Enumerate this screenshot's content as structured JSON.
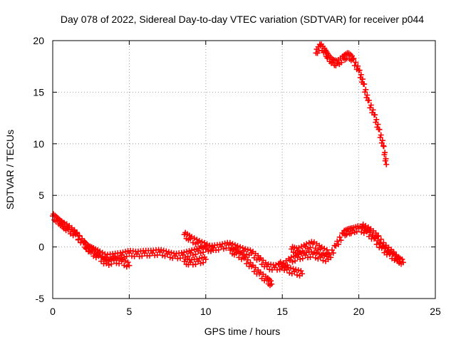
{
  "chart_data": {
    "type": "scatter",
    "title": "Day 078 of 2022, Sidereal Day-to-day VTEC variation (SDTVAR) for receiver p044",
    "xlabel": "GPS time / hours",
    "ylabel": "SDTVAR / TECUs",
    "xlim": [
      0,
      25
    ],
    "ylim": [
      -5,
      20
    ],
    "xticks": [
      0,
      5,
      10,
      15,
      20,
      25
    ],
    "yticks": [
      -5,
      0,
      5,
      10,
      15,
      20
    ],
    "grid": true,
    "marker": "plus",
    "series_color": "#ff0000",
    "series": [
      {
        "name": "main",
        "x": [
          0.0,
          0.3,
          0.6,
          1.0,
          1.5,
          2.0,
          2.3,
          2.6,
          3.0,
          3.5,
          4.0,
          4.5,
          5.0,
          5.5,
          6.0,
          6.5,
          7.0,
          7.5,
          8.0,
          8.5,
          9.0,
          9.5,
          10.0,
          10.5,
          11.0,
          11.5,
          12.0,
          12.5,
          13.0,
          13.5,
          14.0,
          14.5,
          15.0,
          15.5,
          16.0,
          16.5,
          17.0,
          17.5,
          18.0,
          18.5,
          19.0,
          19.3,
          19.6,
          20.0,
          20.5,
          21.0,
          21.5,
          22.0,
          22.5,
          22.9
        ],
        "y": [
          3.0,
          2.6,
          2.2,
          1.7,
          1.2,
          0.4,
          -0.1,
          -0.3,
          -0.6,
          -1.0,
          -0.9,
          -0.8,
          -0.6,
          -0.7,
          -0.6,
          -0.6,
          -0.5,
          -0.7,
          -0.9,
          -0.8,
          -0.6,
          -0.4,
          -0.2,
          -0.1,
          0.0,
          0.2,
          -0.1,
          -0.4,
          -0.6,
          -1.2,
          -1.9,
          -2.0,
          -1.9,
          -1.3,
          -1.0,
          -0.8,
          -0.7,
          -1.0,
          -1.2,
          0.1,
          1.3,
          1.5,
          1.6,
          1.8,
          1.5,
          0.8,
          -0.1,
          -0.7,
          -1.2,
          -1.5
        ]
      },
      {
        "name": "lower",
        "x": [
          0.5,
          1.0,
          1.5,
          2.0,
          2.5,
          3.0,
          3.5,
          4.0,
          4.5,
          5.0
        ],
        "y": [
          2.3,
          1.9,
          1.3,
          0.4,
          -0.5,
          -0.9,
          -1.6,
          -1.3,
          -1.4,
          -1.8
        ]
      },
      {
        "name": "branch1",
        "x": [
          8.6,
          9.0,
          9.5,
          10.0,
          10.5
        ],
        "y": [
          1.2,
          0.8,
          0.4,
          0.1,
          -0.3
        ]
      },
      {
        "name": "branch2",
        "x": [
          8.6,
          9.0,
          9.5,
          10.0
        ],
        "y": [
          -1.4,
          -1.5,
          -1.4,
          -1.2
        ]
      },
      {
        "name": "branch3",
        "x": [
          11.6,
          12.0,
          12.5,
          13.0,
          13.5,
          14.0,
          14.3
        ],
        "y": [
          -0.3,
          -0.6,
          -1.1,
          -1.9,
          -2.6,
          -3.2,
          -3.6
        ]
      },
      {
        "name": "branch4",
        "x": [
          14.8,
          15.3,
          15.8,
          16.3
        ],
        "y": [
          -1.6,
          -2.2,
          -2.4,
          -2.6
        ]
      },
      {
        "name": "branch5",
        "x": [
          15.6,
          16.0,
          16.5,
          17.0,
          17.5,
          18.0
        ],
        "y": [
          -0.2,
          -0.4,
          0.0,
          0.3,
          -0.2,
          -0.6
        ]
      },
      {
        "name": "branch6",
        "x": [
          20.2,
          20.7,
          21.2,
          21.7,
          22.2,
          22.7
        ],
        "y": [
          2.0,
          1.6,
          1.0,
          0.0,
          -0.6,
          -1.4
        ]
      },
      {
        "name": "upper",
        "x": [
          17.2,
          17.5,
          17.8,
          18.0,
          18.3,
          18.6,
          19.0,
          19.3,
          19.6,
          20.0,
          20.3,
          20.6,
          21.0,
          21.3,
          21.6,
          21.8
        ],
        "y": [
          18.8,
          19.5,
          18.9,
          18.4,
          17.9,
          17.8,
          18.3,
          18.6,
          18.2,
          17.1,
          15.8,
          14.2,
          12.8,
          11.4,
          9.8,
          8.0
        ]
      }
    ]
  }
}
